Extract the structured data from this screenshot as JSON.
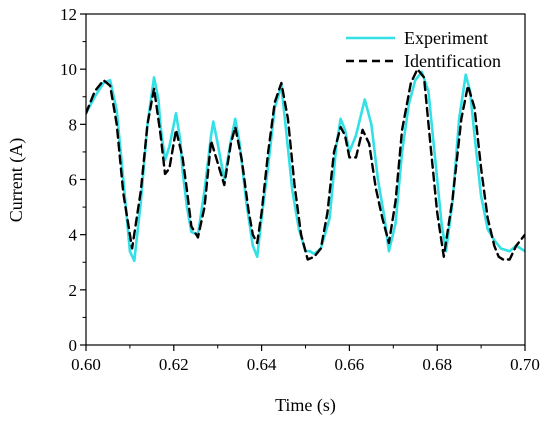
{
  "chart_data": {
    "type": "line",
    "title": "",
    "xlabel": "Time (s)",
    "ylabel": "Current (A)",
    "xlim": [
      0.6,
      0.7
    ],
    "ylim": [
      0,
      12
    ],
    "xticks": [
      "0.60",
      "0.62",
      "0.64",
      "0.66",
      "0.68",
      "0.70"
    ],
    "yticks": [
      "0",
      "2",
      "4",
      "6",
      "8",
      "10",
      "12"
    ],
    "grid": false,
    "legend_position": "top-right",
    "series": [
      {
        "name": "Experiment",
        "color": "#33e0e6",
        "style": "solid",
        "x": [
          0.6,
          0.602,
          0.604,
          0.6055,
          0.607,
          0.6085,
          0.61,
          0.611,
          0.6125,
          0.614,
          0.6155,
          0.6165,
          0.617,
          0.618,
          0.619,
          0.6205,
          0.6215,
          0.622,
          0.623,
          0.624,
          0.6255,
          0.627,
          0.6285,
          0.629,
          0.63,
          0.6315,
          0.633,
          0.634,
          0.635,
          0.6365,
          0.638,
          0.639,
          0.64,
          0.6415,
          0.643,
          0.6445,
          0.6455,
          0.647,
          0.6485,
          0.65,
          0.651,
          0.652,
          0.6535,
          0.6555,
          0.657,
          0.658,
          0.659,
          0.66,
          0.6615,
          0.6635,
          0.665,
          0.6665,
          0.668,
          0.669,
          0.6705,
          0.672,
          0.6735,
          0.675,
          0.6765,
          0.678,
          0.6795,
          0.681,
          0.682,
          0.6835,
          0.685,
          0.6865,
          0.6875,
          0.6885,
          0.69,
          0.6915,
          0.693,
          0.6945,
          0.6965,
          0.698,
          0.7
        ],
        "y": [
          8.4,
          9.0,
          9.5,
          9.6,
          8.5,
          6.0,
          3.4,
          3.05,
          5.2,
          8.0,
          9.7,
          8.9,
          7.9,
          6.7,
          7.2,
          8.4,
          7.4,
          6.3,
          5.0,
          4.1,
          4.0,
          5.6,
          7.6,
          8.1,
          7.3,
          6.0,
          7.4,
          8.2,
          7.3,
          5.2,
          3.6,
          3.2,
          4.6,
          6.5,
          8.6,
          9.4,
          7.9,
          5.6,
          4.2,
          3.4,
          3.4,
          3.3,
          3.5,
          4.6,
          7.2,
          8.2,
          7.8,
          7.0,
          7.6,
          8.9,
          8.0,
          6.0,
          4.6,
          3.4,
          4.4,
          7.0,
          8.7,
          9.6,
          9.9,
          9.2,
          6.8,
          4.4,
          3.4,
          5.2,
          8.2,
          9.8,
          9.2,
          7.6,
          5.4,
          4.2,
          3.8,
          3.5,
          3.4,
          3.6,
          3.4
        ]
      },
      {
        "name": "Identification",
        "color": "#000000",
        "style": "dashed",
        "x": [
          0.6,
          0.602,
          0.604,
          0.6055,
          0.607,
          0.6085,
          0.6105,
          0.6125,
          0.614,
          0.6155,
          0.617,
          0.618,
          0.619,
          0.6205,
          0.622,
          0.623,
          0.624,
          0.6255,
          0.627,
          0.6285,
          0.63,
          0.6315,
          0.633,
          0.634,
          0.6355,
          0.637,
          0.638,
          0.639,
          0.64,
          0.6415,
          0.643,
          0.6445,
          0.646,
          0.6475,
          0.649,
          0.6505,
          0.652,
          0.6535,
          0.655,
          0.6565,
          0.658,
          0.659,
          0.66,
          0.6615,
          0.663,
          0.6645,
          0.666,
          0.6675,
          0.669,
          0.6705,
          0.672,
          0.674,
          0.6755,
          0.677,
          0.6785,
          0.68,
          0.6815,
          0.6835,
          0.6855,
          0.687,
          0.6885,
          0.69,
          0.6915,
          0.693,
          0.694,
          0.695,
          0.6965,
          0.698,
          0.7
        ],
        "y": [
          8.4,
          9.2,
          9.6,
          9.4,
          8.0,
          5.5,
          3.5,
          5.6,
          8.0,
          9.3,
          7.6,
          6.2,
          6.4,
          7.8,
          6.8,
          5.6,
          4.3,
          3.9,
          5.0,
          7.4,
          6.6,
          5.8,
          7.3,
          7.9,
          6.7,
          4.9,
          4.0,
          3.7,
          4.8,
          7.0,
          8.8,
          9.5,
          8.2,
          5.8,
          4.0,
          3.1,
          3.2,
          3.5,
          4.8,
          7.0,
          7.9,
          7.6,
          6.8,
          6.8,
          7.8,
          7.3,
          5.7,
          4.6,
          3.7,
          5.2,
          7.8,
          9.5,
          10.0,
          9.7,
          7.2,
          4.8,
          3.2,
          5.3,
          8.2,
          9.4,
          8.6,
          6.4,
          4.6,
          3.6,
          3.2,
          3.1,
          3.1,
          3.6,
          4.0
        ]
      }
    ]
  }
}
